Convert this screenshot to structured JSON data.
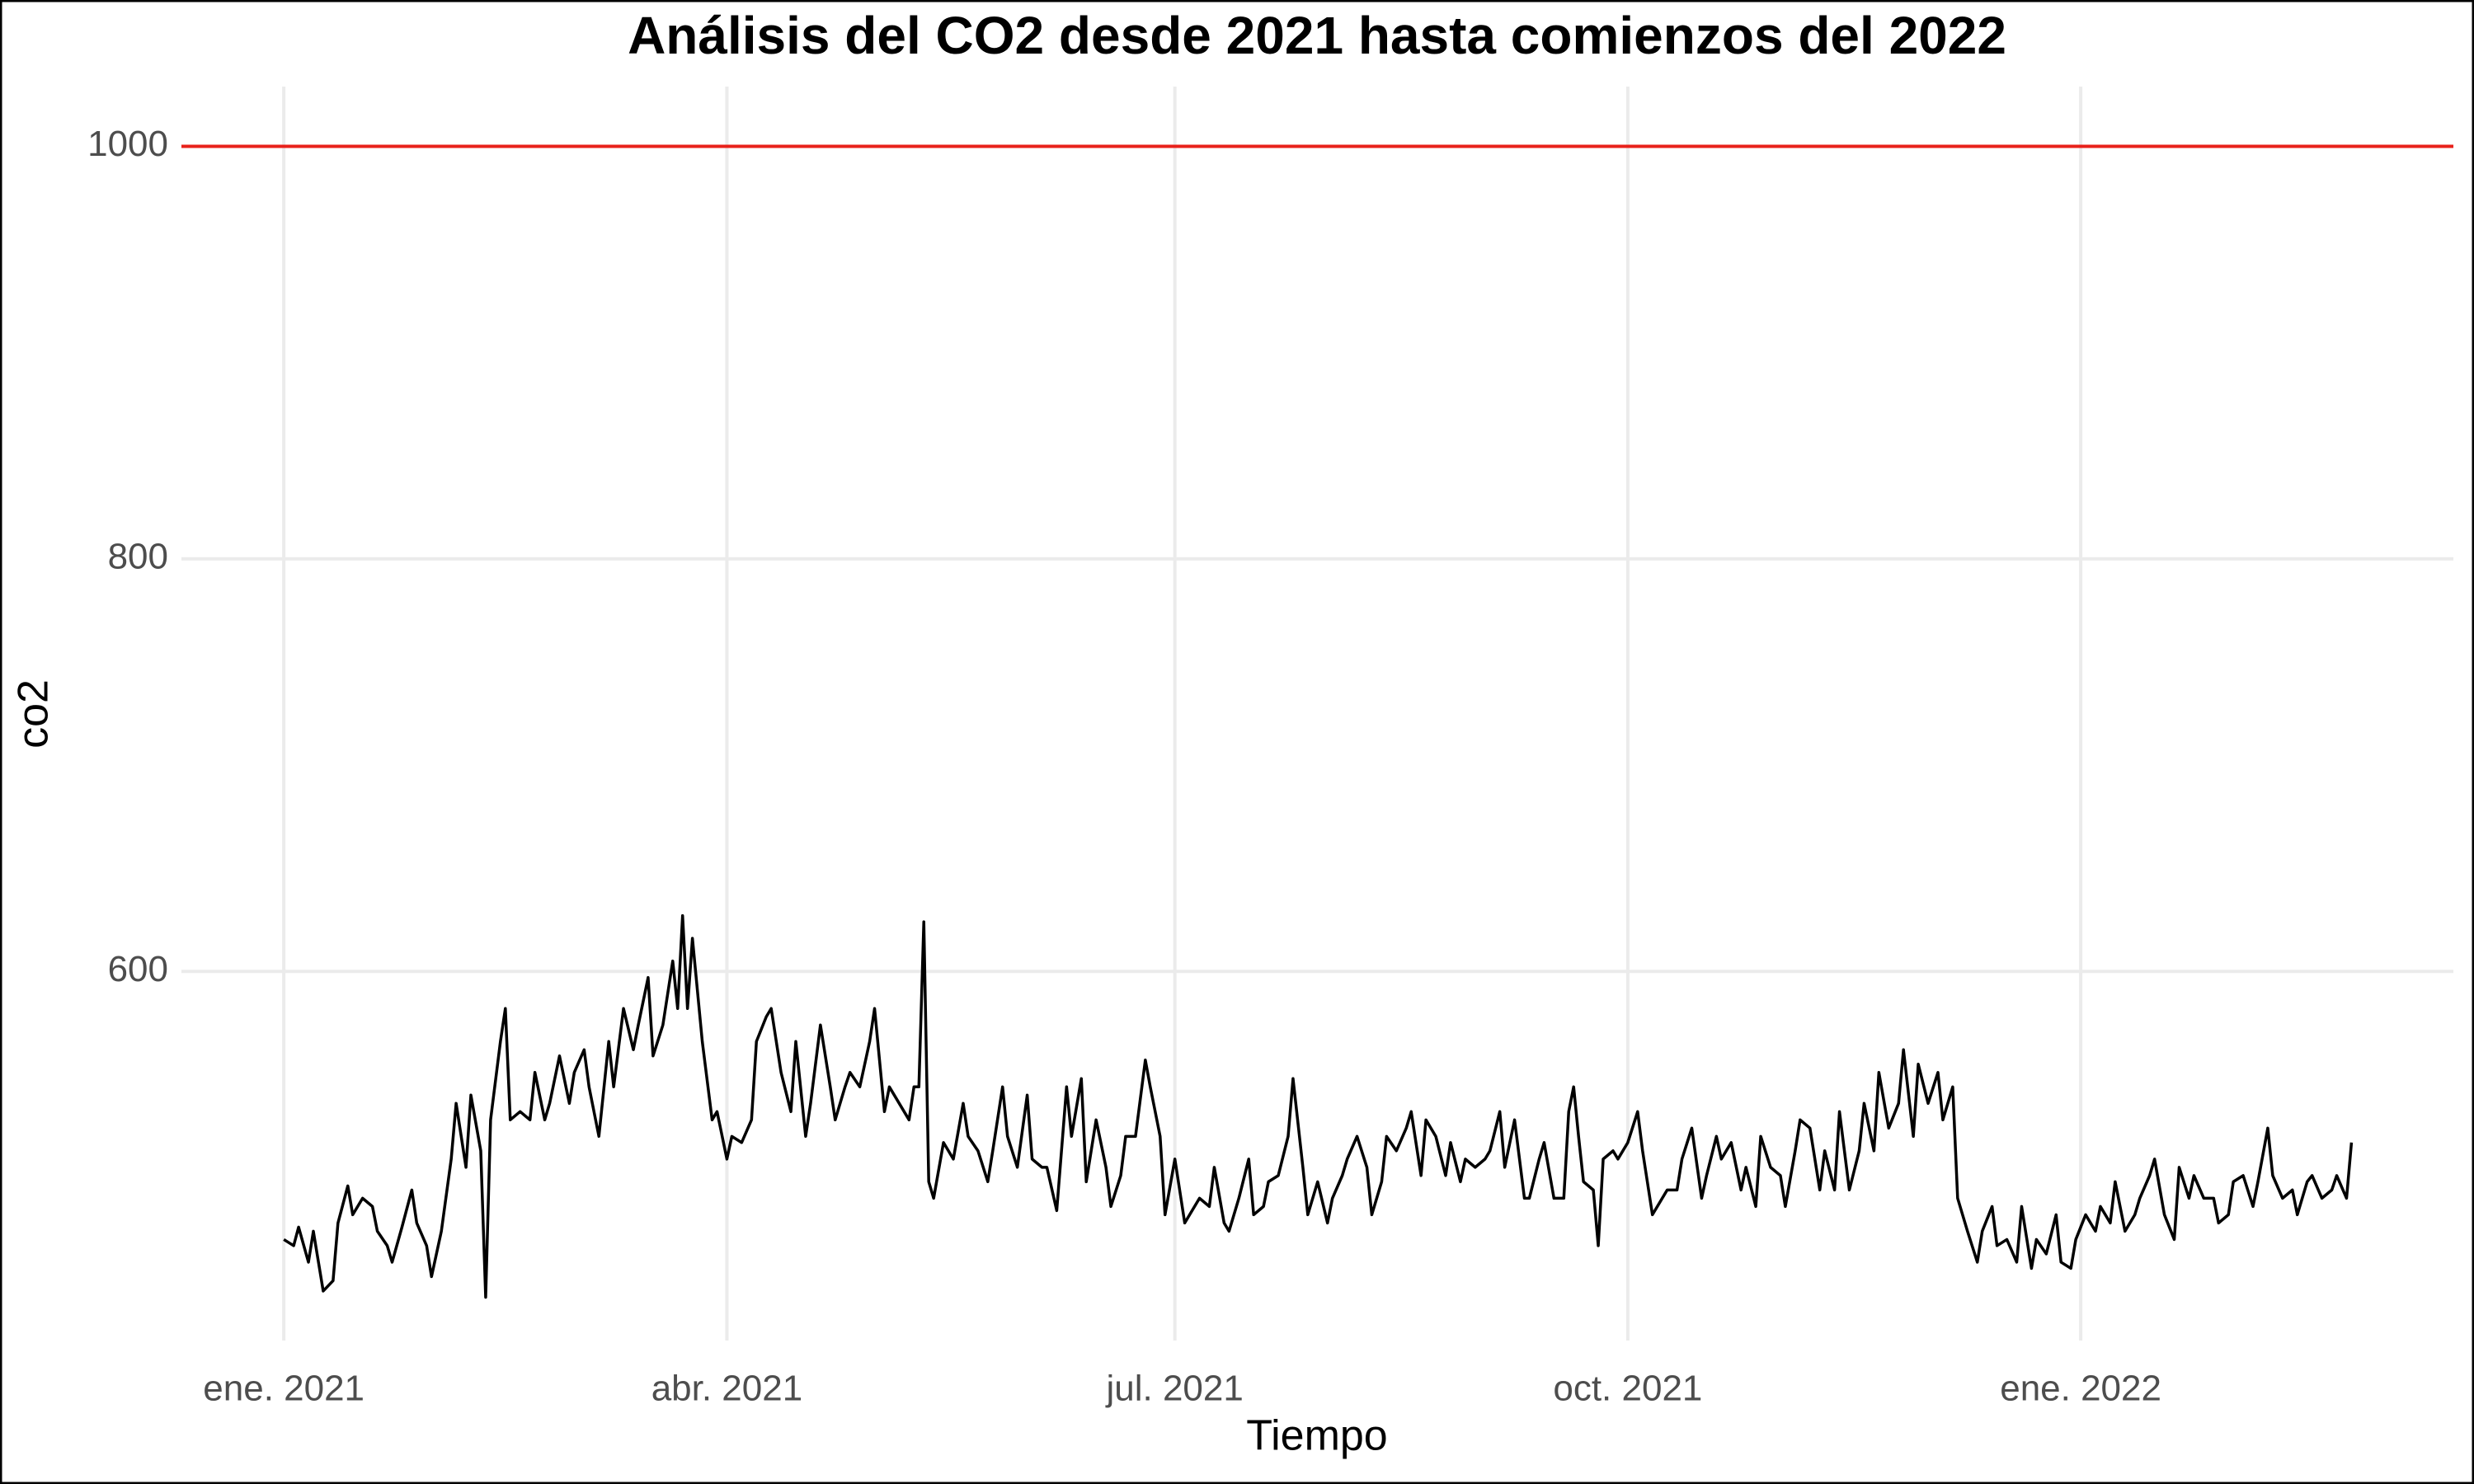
{
  "chart_data": {
    "type": "line",
    "title": "Análisis del CO2 desde 2021 hasta comienzos del 2022",
    "x_label": "Tiempo",
    "y_label": "co2",
    "color": "#000000",
    "hline": 1000,
    "hline_color": "#e8211a",
    "grid": true,
    "xlim": [
      -20.8,
      440.7
    ],
    "ylim": [
      421,
      1029
    ],
    "xticks": [
      {
        "value": 0,
        "label": "ene. 2021"
      },
      {
        "value": 90,
        "label": "abr. 2021"
      },
      {
        "value": 181,
        "label": "jul. 2021"
      },
      {
        "value": 273,
        "label": "oct. 2021"
      },
      {
        "value": 365,
        "label": "ene. 2022"
      }
    ],
    "yticks": [
      600,
      800,
      1000
    ],
    "x": [
      0,
      2,
      3,
      5,
      6,
      8,
      10,
      11,
      13,
      14,
      16,
      18,
      19,
      21,
      22,
      24,
      26,
      27,
      29,
      30,
      32,
      34,
      35,
      37,
      38,
      40,
      41,
      42,
      44,
      45,
      46,
      48,
      50,
      51,
      53,
      54,
      56,
      58,
      59,
      61,
      62,
      64,
      66,
      67,
      69,
      71,
      72,
      74,
      75,
      77,
      79,
      80,
      81,
      82,
      83,
      85,
      87,
      88,
      90,
      91,
      93,
      95,
      96,
      98,
      99,
      101,
      103,
      104,
      106,
      107,
      109,
      111,
      112,
      114,
      115,
      117,
      119,
      120,
      122,
      123,
      125,
      127,
      128,
      129,
      130,
      131,
      132,
      134,
      136,
      138,
      139,
      141,
      143,
      144,
      146,
      147,
      149,
      151,
      152,
      154,
      155,
      157,
      159,
      160,
      162,
      163,
      165,
      167,
      168,
      170,
      171,
      173,
      175,
      176,
      178,
      179,
      181,
      183,
      184,
      186,
      188,
      189,
      191,
      192,
      194,
      196,
      197,
      199,
      200,
      202,
      204,
      205,
      207,
      208,
      210,
      212,
      213,
      215,
      216,
      218,
      220,
      221,
      223,
      224,
      226,
      228,
      229,
      231,
      232,
      234,
      236,
      237,
      239,
      240,
      242,
      244,
      245,
      247,
      248,
      250,
      252,
      253,
      255,
      256,
      258,
      260,
      261,
      262,
      263,
      264,
      266,
      267,
      268,
      270,
      271,
      273,
      275,
      276,
      278,
      279,
      281,
      283,
      284,
      286,
      288,
      289,
      291,
      292,
      294,
      296,
      297,
      299,
      300,
      302,
      304,
      305,
      307,
      308,
      310,
      312,
      313,
      315,
      316,
      318,
      320,
      321,
      323,
      324,
      326,
      328,
      329,
      331,
      332,
      334,
      336,
      337,
      339,
      340,
      342,
      344,
      345,
      347,
      348,
      350,
      352,
      353,
      355,
      356,
      358,
      360,
      361,
      363,
      364,
      366,
      368,
      369,
      371,
      372,
      374,
      376,
      377,
      379,
      380,
      382,
      384,
      385,
      387,
      388,
      390,
      392,
      393,
      395,
      396,
      398,
      400,
      401,
      403,
      404,
      406,
      408,
      409,
      411,
      412,
      414,
      416,
      417,
      419,
      420
    ],
    "values": [
      470,
      467,
      476,
      459,
      474,
      445,
      450,
      478,
      496,
      482,
      490,
      486,
      474,
      467,
      459,
      476,
      494,
      478,
      467,
      452,
      474,
      509,
      536,
      505,
      540,
      513,
      442,
      528,
      566,
      582,
      528,
      532,
      528,
      551,
      528,
      536,
      559,
      536,
      551,
      562,
      544,
      520,
      566,
      544,
      582,
      562,
      574,
      597,
      559,
      574,
      605,
      582,
      627,
      582,
      616,
      566,
      528,
      532,
      509,
      520,
      517,
      528,
      566,
      578,
      582,
      551,
      532,
      566,
      520,
      536,
      574,
      544,
      528,
      544,
      551,
      544,
      566,
      582,
      532,
      544,
      536,
      528,
      544,
      544,
      624,
      498,
      490,
      517,
      509,
      536,
      520,
      513,
      498,
      513,
      544,
      520,
      505,
      540,
      509,
      505,
      505,
      484,
      544,
      520,
      548,
      498,
      528,
      505,
      486,
      501,
      520,
      520,
      557,
      544,
      520,
      482,
      509,
      478,
      482,
      490,
      486,
      505,
      478,
      474,
      490,
      509,
      482,
      486,
      498,
      501,
      520,
      548,
      505,
      482,
      498,
      478,
      490,
      501,
      509,
      520,
      505,
      482,
      498,
      520,
      513,
      524,
      532,
      501,
      528,
      520,
      501,
      517,
      498,
      509,
      505,
      509,
      513,
      532,
      505,
      528,
      490,
      490,
      509,
      517,
      490,
      490,
      532,
      544,
      520,
      498,
      494,
      467,
      509,
      513,
      509,
      517,
      532,
      513,
      482,
      486,
      494,
      494,
      509,
      524,
      490,
      501,
      520,
      509,
      517,
      494,
      505,
      486,
      520,
      505,
      501,
      486,
      513,
      528,
      524,
      494,
      513,
      494,
      532,
      494,
      513,
      536,
      513,
      551,
      524,
      536,
      562,
      520,
      555,
      536,
      551,
      528,
      544,
      490,
      474,
      459,
      474,
      486,
      467,
      470,
      459,
      486,
      456,
      470,
      463,
      482,
      459,
      456,
      470,
      482,
      474,
      486,
      478,
      498,
      474,
      482,
      490,
      501,
      509,
      482,
      470,
      505,
      490,
      501,
      490,
      490,
      478,
      482,
      498,
      501,
      486,
      498,
      524,
      501,
      490,
      494,
      482,
      498,
      501,
      490,
      494,
      501,
      490,
      517
    ]
  }
}
